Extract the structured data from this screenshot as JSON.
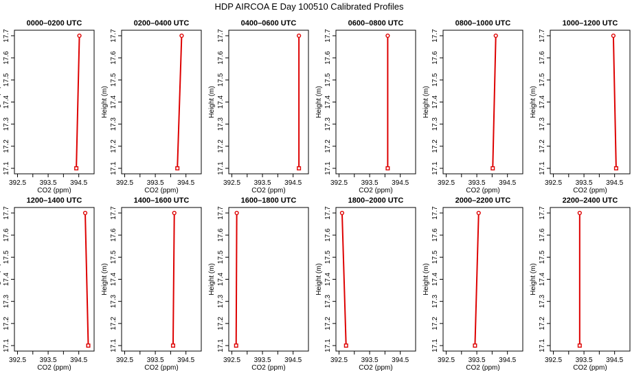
{
  "title": "HDP AIRCOA E  Day 100510  Calibrated Profiles",
  "chart_data": [
    {
      "type": "line",
      "title": "0000–0200 UTC",
      "xlabel": "CO2 (ppm)",
      "ylabel": "Height (m)",
      "xlim": [
        392.5,
        394.9
      ],
      "ylim": [
        17.1,
        17.7
      ],
      "xticks": [
        "392.5",
        "393.5",
        "394.5"
      ],
      "yticks": [
        "17.1",
        "17.2",
        "17.3",
        "17.4",
        "17.5",
        "17.6",
        "17.7"
      ],
      "series": [
        {
          "x": [
            394.42,
            394.52
          ],
          "y": [
            17.1,
            17.7
          ]
        }
      ]
    },
    {
      "type": "line",
      "title": "0200–0400 UTC",
      "xlabel": "CO2 (ppm)",
      "ylabel": "Height (m)",
      "xlim": [
        392.5,
        394.9
      ],
      "ylim": [
        17.1,
        17.7
      ],
      "xticks": [
        "392.5",
        "393.5",
        "394.5"
      ],
      "yticks": [
        "17.1",
        "17.2",
        "17.3",
        "17.4",
        "17.5",
        "17.6",
        "17.7"
      ],
      "series": [
        {
          "x": [
            394.22,
            394.36
          ],
          "y": [
            17.1,
            17.7
          ]
        }
      ]
    },
    {
      "type": "line",
      "title": "0400–0600 UTC",
      "xlabel": "CO2 (ppm)",
      "ylabel": "Height (m)",
      "xlim": [
        392.5,
        394.9
      ],
      "ylim": [
        17.1,
        17.7
      ],
      "xticks": [
        "392.5",
        "393.5",
        "394.5"
      ],
      "yticks": [
        "17.1",
        "17.2",
        "17.3",
        "17.4",
        "17.5",
        "17.6",
        "17.7"
      ],
      "series": [
        {
          "x": [
            394.69,
            394.69
          ],
          "y": [
            17.1,
            17.7
          ]
        }
      ]
    },
    {
      "type": "line",
      "title": "0600–0800 UTC",
      "xlabel": "CO2 (ppm)",
      "ylabel": "Height (m)",
      "xlim": [
        392.5,
        394.9
      ],
      "ylim": [
        17.1,
        17.7
      ],
      "xticks": [
        "392.5",
        "393.5",
        "394.5"
      ],
      "yticks": [
        "17.1",
        "17.2",
        "17.3",
        "17.4",
        "17.5",
        "17.6",
        "17.7"
      ],
      "series": [
        {
          "x": [
            394.09,
            394.09
          ],
          "y": [
            17.1,
            17.7
          ]
        }
      ]
    },
    {
      "type": "line",
      "title": "0800–1000 UTC",
      "xlabel": "CO2 (ppm)",
      "ylabel": "Height (m)",
      "xlim": [
        392.5,
        394.9
      ],
      "ylim": [
        17.1,
        17.7
      ],
      "xticks": [
        "392.5",
        "393.5",
        "394.5"
      ],
      "yticks": [
        "17.1",
        "17.2",
        "17.3",
        "17.4",
        "17.5",
        "17.6",
        "17.7"
      ],
      "series": [
        {
          "x": [
            394.02,
            394.12
          ],
          "y": [
            17.1,
            17.7
          ]
        }
      ]
    },
    {
      "type": "line",
      "title": "1000–1200 UTC",
      "xlabel": "CO2 (ppm)",
      "ylabel": "Height (m)",
      "xlim": [
        392.5,
        394.9
      ],
      "ylim": [
        17.1,
        17.7
      ],
      "xticks": [
        "392.5",
        "393.5",
        "394.5"
      ],
      "yticks": [
        "17.1",
        "17.2",
        "17.3",
        "17.4",
        "17.5",
        "17.6",
        "17.7"
      ],
      "series": [
        {
          "x": [
            394.55,
            394.46
          ],
          "y": [
            17.1,
            17.7
          ]
        }
      ]
    },
    {
      "type": "line",
      "title": "1200–1400 UTC",
      "xlabel": "CO2 (ppm)",
      "ylabel": "Height (m)",
      "xlim": [
        392.5,
        394.9
      ],
      "ylim": [
        17.1,
        17.7
      ],
      "xticks": [
        "392.5",
        "393.5",
        "394.5"
      ],
      "yticks": [
        "17.1",
        "17.2",
        "17.3",
        "17.4",
        "17.5",
        "17.6",
        "17.7"
      ],
      "series": [
        {
          "x": [
            394.81,
            394.71
          ],
          "y": [
            17.1,
            17.7
          ]
        }
      ]
    },
    {
      "type": "line",
      "title": "1400–1600 UTC",
      "xlabel": "CO2 (ppm)",
      "ylabel": "Height (m)",
      "xlim": [
        392.5,
        394.9
      ],
      "ylim": [
        17.1,
        17.7
      ],
      "xticks": [
        "392.5",
        "393.5",
        "394.5"
      ],
      "yticks": [
        "17.1",
        "17.2",
        "17.3",
        "17.4",
        "17.5",
        "17.6",
        "17.7"
      ],
      "series": [
        {
          "x": [
            394.08,
            394.12
          ],
          "y": [
            17.1,
            17.7
          ]
        }
      ]
    },
    {
      "type": "line",
      "title": "1600–1800 UTC",
      "xlabel": "CO2 (ppm)",
      "ylabel": "Height (m)",
      "xlim": [
        392.5,
        394.9
      ],
      "ylim": [
        17.1,
        17.7
      ],
      "xticks": [
        "392.5",
        "393.5",
        "394.5"
      ],
      "yticks": [
        "17.1",
        "17.2",
        "17.3",
        "17.4",
        "17.5",
        "17.6",
        "17.7"
      ],
      "series": [
        {
          "x": [
            392.64,
            392.66
          ],
          "y": [
            17.1,
            17.7
          ]
        }
      ]
    },
    {
      "type": "line",
      "title": "1800–2000 UTC",
      "xlabel": "CO2 (ppm)",
      "ylabel": "Height (m)",
      "xlim": [
        392.5,
        394.9
      ],
      "ylim": [
        17.1,
        17.7
      ],
      "xticks": [
        "392.5",
        "393.5",
        "394.5"
      ],
      "yticks": [
        "17.1",
        "17.2",
        "17.3",
        "17.4",
        "17.5",
        "17.6",
        "17.7"
      ],
      "series": [
        {
          "x": [
            392.73,
            392.6
          ],
          "y": [
            17.1,
            17.7
          ]
        }
      ]
    },
    {
      "type": "line",
      "title": "2000–2200 UTC",
      "xlabel": "CO2 (ppm)",
      "ylabel": "Height (m)",
      "xlim": [
        392.5,
        394.9
      ],
      "ylim": [
        17.1,
        17.7
      ],
      "xticks": [
        "392.5",
        "393.5",
        "394.5"
      ],
      "yticks": [
        "17.1",
        "17.2",
        "17.3",
        "17.4",
        "17.5",
        "17.6",
        "17.7"
      ],
      "series": [
        {
          "x": [
            393.44,
            393.56
          ],
          "y": [
            17.1,
            17.7
          ]
        }
      ]
    },
    {
      "type": "line",
      "title": "2200–2400 UTC",
      "xlabel": "CO2 (ppm)",
      "ylabel": "Height (m)",
      "xlim": [
        392.5,
        394.9
      ],
      "ylim": [
        17.1,
        17.7
      ],
      "xticks": [
        "392.5",
        "393.5",
        "394.5"
      ],
      "yticks": [
        "17.1",
        "17.2",
        "17.3",
        "17.4",
        "17.5",
        "17.6",
        "17.7"
      ],
      "series": [
        {
          "x": [
            393.36,
            393.36
          ],
          "y": [
            17.1,
            17.7
          ]
        }
      ]
    }
  ],
  "colors": {
    "line": "#dd0000",
    "marker": "#dd0000",
    "axes": "#000000",
    "background": "#ffffff"
  }
}
